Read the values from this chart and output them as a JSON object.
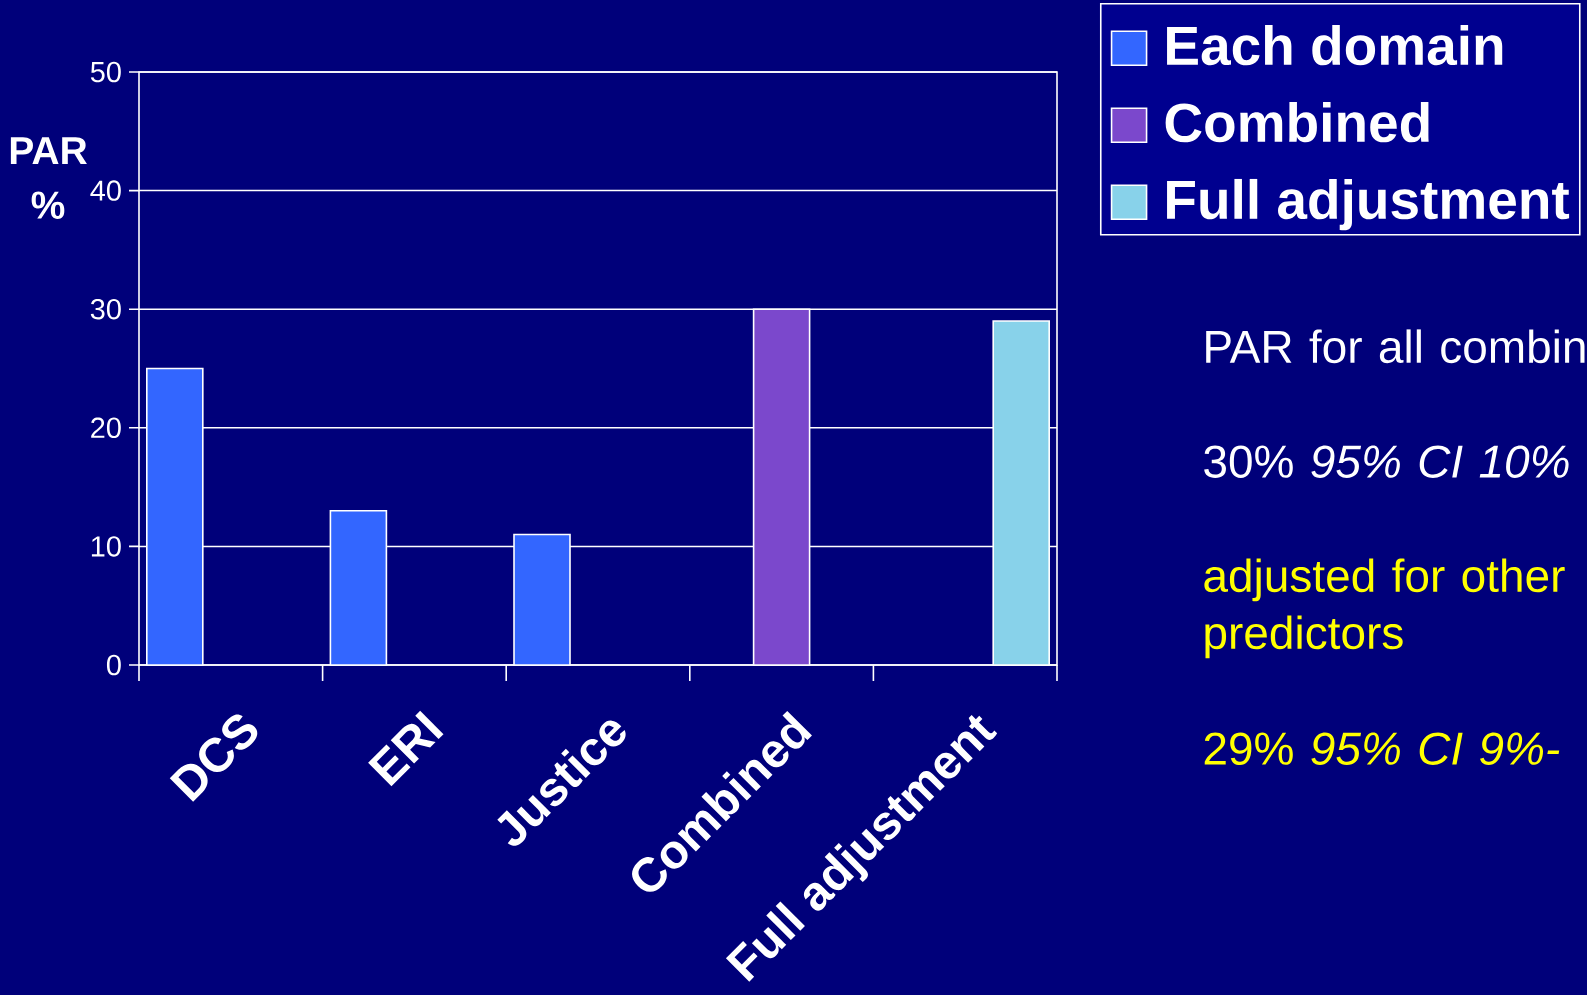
{
  "chart_data": {
    "type": "bar",
    "categories": [
      "DCS",
      "ERI",
      "Justice",
      "Combined",
      "Full adjustment"
    ],
    "series": [
      {
        "name": "Each domain",
        "color": "#3366ff",
        "values": [
          25,
          13,
          11,
          null,
          null
        ]
      },
      {
        "name": "Combined",
        "color": "#7b48cc",
        "values": [
          null,
          null,
          null,
          30,
          null
        ]
      },
      {
        "name": "Full adjustment",
        "color": "#88d2ea",
        "values": [
          null,
          null,
          null,
          null,
          29
        ]
      }
    ],
    "ylabel": "PAR %",
    "ylim": [
      0,
      50
    ],
    "yticks": [
      0,
      10,
      20,
      30,
      40,
      50
    ],
    "grid": "y",
    "legend": "top right",
    "annotations": [
      "PAR for all combin",
      "30% *95% CI 10%*",
      "adjusted for other predictors",
      "29% *95% CI 9%-*"
    ]
  }
}
